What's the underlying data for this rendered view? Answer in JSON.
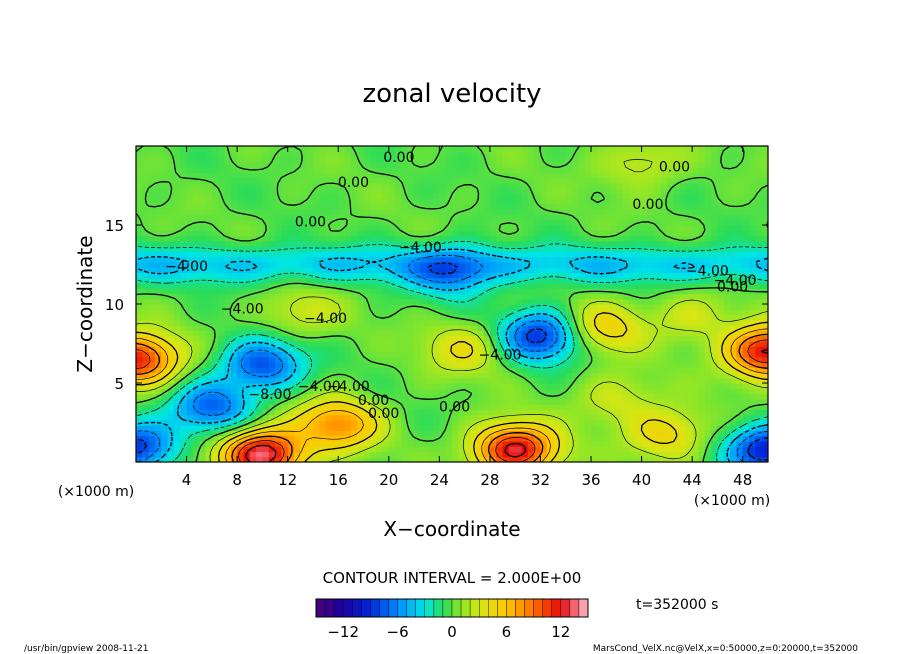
{
  "chart_data": {
    "type": "heatmap",
    "title": "zonal velocity",
    "xlabel": "X−coordinate",
    "ylabel": "Z−coordinate",
    "x_unit_left": "(×1000 m)",
    "x_unit_right": "(×1000 m)",
    "xlim": [
      0,
      50
    ],
    "ylim": [
      0,
      20
    ],
    "x_ticks": [
      4,
      8,
      12,
      16,
      20,
      24,
      28,
      32,
      36,
      40,
      44,
      48
    ],
    "y_ticks": [
      5,
      10,
      15
    ],
    "contour_interval_text": "CONTOUR INTERVAL = 2.000E+00",
    "time_text": "t=352000 s",
    "colorbar": {
      "min": -15,
      "max": 15,
      "step": 1,
      "ticks": [
        "−12",
        "−6",
        "0",
        "6",
        "12"
      ],
      "tick_values": [
        -12,
        -6,
        0,
        6,
        12
      ]
    },
    "contour_labels": [
      "0.00",
      "0.00",
      "0.00",
      "0.00",
      "0.00",
      "−4.00",
      "−4.00",
      "−4.00",
      "−4.00",
      "−4.00",
      "−4.00",
      "−4.00",
      "−8.00",
      "−4.00",
      "0.00",
      "0.00",
      "0.00",
      "−4.00",
      "0.00"
    ],
    "field_features": [
      {
        "x": 25,
        "z": 12.0,
        "u": -5
      },
      {
        "x": 10,
        "z": 6.2,
        "u": -8
      },
      {
        "x": 32,
        "z": 8.0,
        "u": -9
      },
      {
        "x": 6,
        "z": 3.5,
        "u": -7
      },
      {
        "x": 0,
        "z": 1.0,
        "u": -9
      },
      {
        "x": 50,
        "z": 0.8,
        "u": -10
      },
      {
        "x": 0,
        "z": 6.5,
        "u": 12
      },
      {
        "x": 50,
        "z": 7.0,
        "u": 13
      },
      {
        "x": 10,
        "z": 0.5,
        "u": 14
      },
      {
        "x": 30,
        "z": 0.8,
        "u": 13
      },
      {
        "x": 16,
        "z": 2.4,
        "u": 8
      },
      {
        "x": 37,
        "z": 8.5,
        "u": 5
      },
      {
        "x": 44,
        "z": 9.2,
        "u": 3
      },
      {
        "x": 26,
        "z": 7.2,
        "u": 4
      },
      {
        "x": 42,
        "z": 1.8,
        "u": 5
      },
      {
        "x": 38,
        "z": 4.0,
        "u": 3
      },
      {
        "x": 40,
        "z": 19.0,
        "u": 3
      },
      {
        "x": 13,
        "z": 9.5,
        "u": 3
      }
    ]
  },
  "footer": {
    "left_text": "/usr/bin/gpview  2008-11-21",
    "right_text": "MarsCond_VelX.nc@VelX,x=0:50000,z=0:20000,t=352000"
  }
}
